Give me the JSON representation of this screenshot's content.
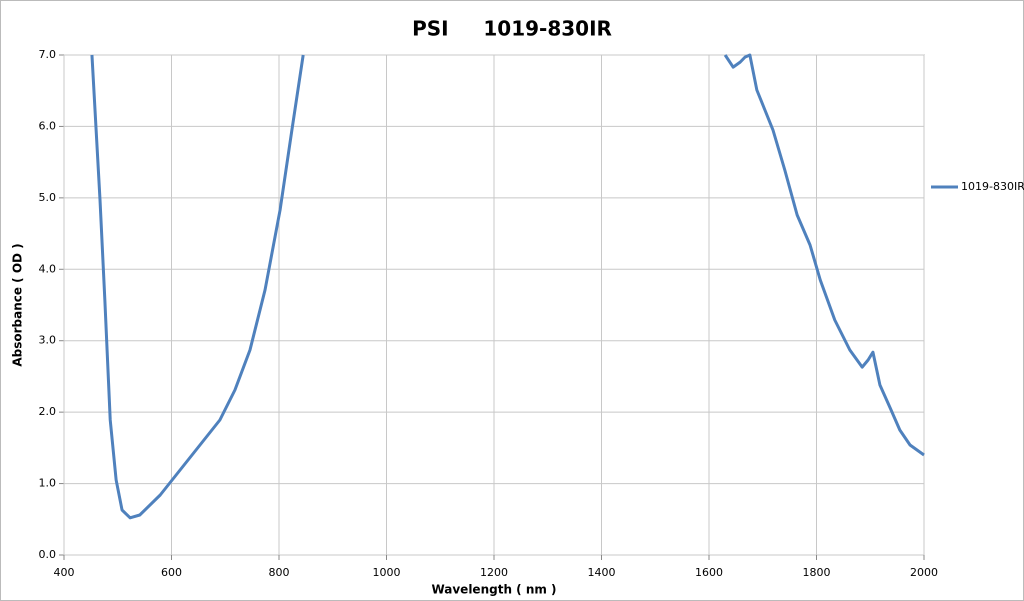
{
  "chart_data": {
    "type": "line",
    "title": "PSI     1019-830IR",
    "x_label": "Wavelength ( nm )",
    "y_label": "Absorbance ( OD )",
    "xlim": [
      400,
      2000
    ],
    "xticks": [
      400,
      600,
      800,
      1000,
      1200,
      1400,
      1600,
      1800,
      2000
    ],
    "ylim": [
      0,
      7
    ],
    "yticks": [
      {
        "value": 0,
        "label": "0.0"
      },
      {
        "value": 1,
        "label": "1.0"
      },
      {
        "value": 2,
        "label": "2.0"
      },
      {
        "value": 3,
        "label": "3.0"
      },
      {
        "value": 4,
        "label": "4.0"
      },
      {
        "value": 5,
        "label": "5.0"
      },
      {
        "value": 6,
        "label": "6.0"
      },
      {
        "value": 7,
        "label": "7.0"
      }
    ],
    "grid": true,
    "legend": "right",
    "x": [
      452,
      467,
      476,
      486,
      497,
      508,
      523,
      541,
      579,
      616,
      653,
      690,
      718,
      746,
      774,
      802,
      824,
      845,
      1200,
      1630,
      1645,
      1658,
      1667,
      1676,
      1689,
      1704,
      1719,
      1741,
      1764,
      1788,
      1807,
      1834,
      1862,
      1885,
      1896,
      1905,
      1918,
      1937,
      1955,
      1974,
      2000
    ],
    "series": [
      {
        "name": "1019-830IR",
        "color": "#4f81bd",
        "values": [
          7.0,
          4.97,
          3.57,
          1.89,
          1.05,
          0.63,
          0.52,
          0.56,
          0.84,
          1.19,
          1.54,
          1.89,
          2.31,
          2.87,
          3.71,
          4.83,
          5.95,
          7.0,
          null,
          7.0,
          6.83,
          6.9,
          6.97,
          7.0,
          6.51,
          6.23,
          5.95,
          5.39,
          4.76,
          4.34,
          3.85,
          3.29,
          2.87,
          2.63,
          2.73,
          2.84,
          2.38,
          2.06,
          1.75,
          1.54,
          1.4
        ]
      }
    ]
  }
}
